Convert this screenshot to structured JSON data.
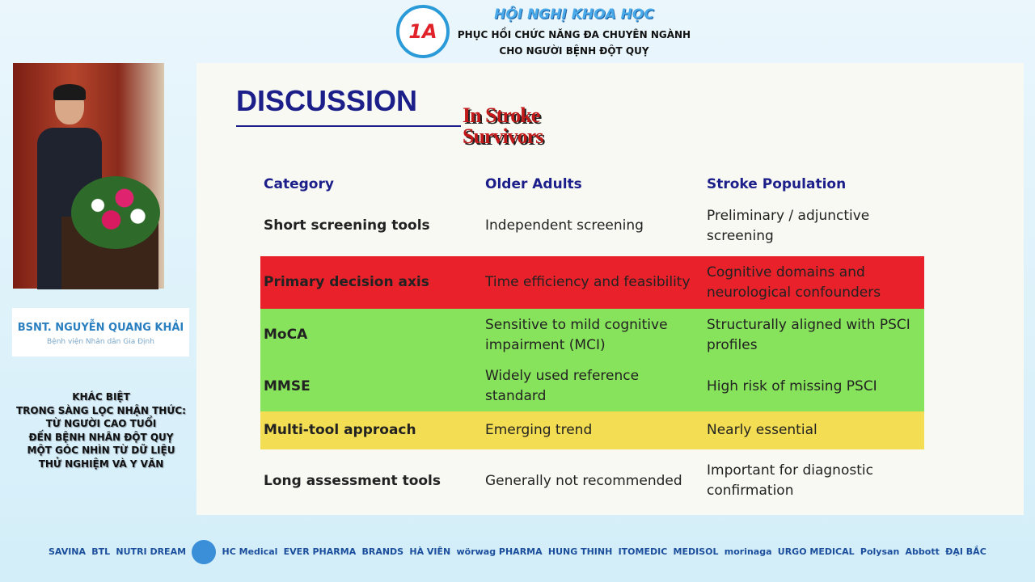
{
  "header": {
    "logo_text": "1A",
    "title": "HỘI NGHỊ KHOA HỌC",
    "subtitle_1": "PHỤC HỒI CHỨC NĂNG ĐA CHUYÊN NGÀNH",
    "subtitle_2": "CHO NGƯỜI BỆNH ĐỘT QUỴ"
  },
  "speaker": {
    "name": "BSNT. NGUYỄN QUANG KHẢI",
    "hospital": "Bệnh viện Nhân dân Gia Định"
  },
  "topic": [
    "KHÁC BIỆT",
    "TRONG SÀNG LỌC NHẬN THỨC:",
    "TỪ NGƯỜI CAO TUỔI",
    "ĐẾN BỆNH NHÂN ĐỘT QUỴ",
    "MỘT GÓC NHÌN TỪ DỮ LIỆU",
    "THỬ NGHIỆM VÀ Y VĂN"
  ],
  "slide": {
    "title": "DISCUSSION",
    "badge_line1": "In Stroke",
    "badge_line2": "Survivors",
    "headers": [
      "Category",
      "Older Adults",
      "Stroke Population"
    ],
    "rows": [
      {
        "cells": [
          "Short screening tools",
          "Independent screening",
          "Preliminary / adjunctive screening"
        ],
        "color": ""
      },
      {
        "cells": [
          "Primary decision axis",
          "Time efficiency and feasibility",
          "Cognitive domains and neurological confounders"
        ],
        "color": "#e8212a"
      },
      {
        "cells": [
          "MoCA",
          "Sensitive to mild cognitive impairment (MCI)",
          "Structurally aligned with PSCI profiles"
        ],
        "color": "#87e35b"
      },
      {
        "cells": [
          "MMSE",
          "Widely used reference standard",
          "High risk of missing PSCI"
        ],
        "color": "#87e35b"
      },
      {
        "cells": [
          "Multi-tool approach",
          "Emerging trend",
          "Nearly essential"
        ],
        "color": "#f3dd52"
      },
      {
        "cells": [
          "Long assessment tools",
          "Generally not recommended",
          "Important for diagnostic confirmation"
        ],
        "color": ""
      }
    ]
  },
  "sponsors": [
    "SAVINA",
    "BTL",
    "NUTRI DREAM",
    "",
    "HC Medical",
    "EVER PHARMA",
    "BRANDS",
    "HÀ VIÊN",
    "wörwag PHARMA",
    "HUNG THINH",
    "ITOMEDIC",
    "MEDISOL",
    "morinaga",
    "URGO MEDICAL",
    "Polysan",
    "Abbott",
    "ĐẠI BẮC"
  ]
}
